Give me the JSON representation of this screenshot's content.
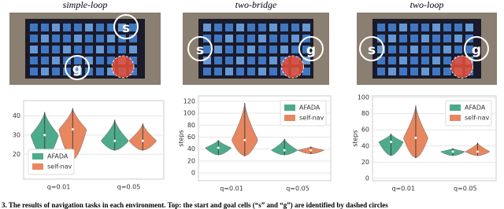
{
  "photos": [
    {
      "title": "simple-loop",
      "labels": [
        "s",
        "g"
      ]
    },
    {
      "title": "two-bridge",
      "labels": [
        "s",
        "g"
      ]
    },
    {
      "title": "two-loop",
      "labels": [
        "s",
        "g"
      ]
    }
  ],
  "chart_data": [
    {
      "type": "violin",
      "categories": [
        "q=0.01",
        "q=0.05"
      ],
      "ylim": [
        7,
        48
      ],
      "yticks": [
        20,
        30,
        40
      ],
      "grid": true,
      "legend": "lower left",
      "series": [
        {
          "name": "AFADA",
          "color": "#4dab8b",
          "min": [
            17,
            22
          ],
          "median": [
            30,
            27
          ],
          "max": [
            42,
            38
          ]
        },
        {
          "name": "self-nav",
          "color": "#e8875f",
          "min": [
            17,
            22
          ],
          "median": [
            33,
            27
          ],
          "max": [
            44,
            36
          ]
        }
      ]
    },
    {
      "type": "violin",
      "ylabel": "steps",
      "categories": [
        "q=0.01",
        "q=0.05"
      ],
      "ylim": [
        -13,
        129
      ],
      "yticks": [
        0,
        20,
        40,
        60,
        80,
        100,
        120
      ],
      "grid": true,
      "legend": "upper right",
      "series": [
        {
          "name": "AFADA",
          "color": "#4dab8b",
          "min": [
            30,
            30
          ],
          "median": [
            42,
            38
          ],
          "max": [
            55,
            57
          ]
        },
        {
          "name": "self-nav",
          "color": "#e8875f",
          "min": [
            28,
            32
          ],
          "median": [
            55,
            38
          ],
          "max": [
            117,
            44
          ]
        }
      ]
    },
    {
      "type": "violin",
      "ylabel": "steps",
      "categories": [
        "q=0.01",
        "q=0.05"
      ],
      "ylim": [
        -3,
        102
      ],
      "yticks": [
        0,
        20,
        40,
        60,
        80,
        100
      ],
      "grid": true,
      "legend": "upper right",
      "series": [
        {
          "name": "AFADA",
          "color": "#4dab8b",
          "min": [
            28,
            28
          ],
          "median": [
            45,
            33
          ],
          "max": [
            55,
            37
          ]
        },
        {
          "name": "self-nav",
          "color": "#e8875f",
          "min": [
            25,
            28
          ],
          "median": [
            50,
            33
          ],
          "max": [
            90,
            44
          ]
        }
      ]
    }
  ],
  "caption": "3. The results of navigation tasks in each environment. Top: the start and goal cells (“s” and “g”) are identified by dashed circles"
}
